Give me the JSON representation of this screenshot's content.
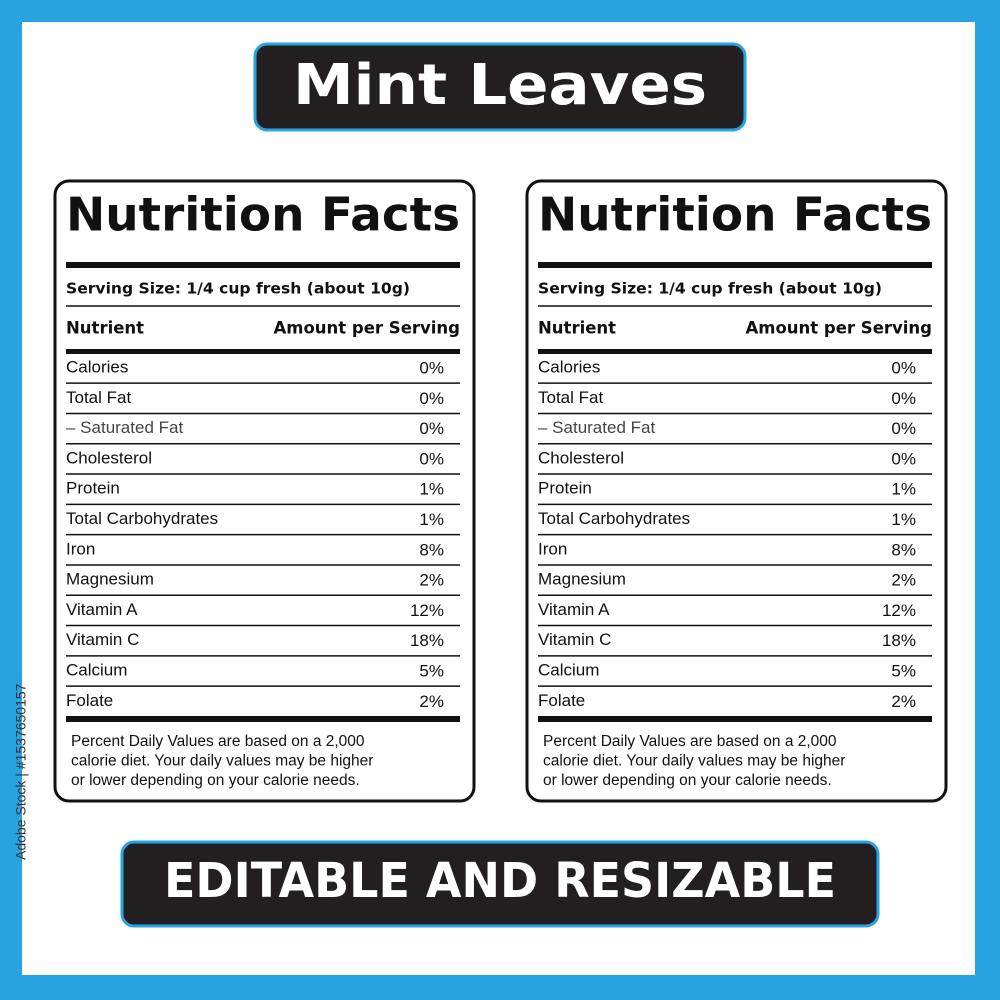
{
  "title": "Mint Leaves",
  "labels": [
    {
      "heading": "Nutrition Facts",
      "serving_size": "Serving Size: 1/4 cup fresh (about 10g)",
      "column_headers": [
        "Nutrient",
        "Amount per Serving"
      ],
      "rows": [
        [
          "Calories",
          "0%"
        ],
        [
          "Total Fat",
          "0%"
        ],
        [
          "– Saturated Fat",
          "0%"
        ],
        [
          "Cholesterol",
          "0%"
        ],
        [
          "Protein",
          "1%"
        ],
        [
          "Total Carbohydrates",
          "1%"
        ],
        [
          "Iron",
          "8%"
        ],
        [
          "Magnesium",
          "2%"
        ],
        [
          "Vitamin A",
          "12%"
        ],
        [
          "Vitamin C",
          "18%"
        ],
        [
          "Calcium",
          "5%"
        ],
        [
          "Folate",
          "2%"
        ]
      ],
      "footnote": [
        "Percent Daily Values are based on a 2,000",
        "calorie diet. Your daily values may be higher",
        "or lower depending on your calorie needs."
      ]
    },
    {
      "heading": "Nutrition Facts",
      "serving_size": "Serving Size: 1/4 cup fresh (about 10g)",
      "column_headers": [
        "Nutrient",
        "Amount per Serving"
      ],
      "rows": [
        [
          "Calories",
          "0%"
        ],
        [
          "Total Fat",
          "0%"
        ],
        [
          "– Saturated Fat",
          "0%"
        ],
        [
          "Cholesterol",
          "0%"
        ],
        [
          "Protein",
          "1%"
        ],
        [
          "Total Carbohydrates",
          "1%"
        ],
        [
          "Iron",
          "8%"
        ],
        [
          "Magnesium",
          "2%"
        ],
        [
          "Vitamin A",
          "12%"
        ],
        [
          "Vitamin C",
          "18%"
        ],
        [
          "Calcium",
          "5%"
        ],
        [
          "Folate",
          "2%"
        ]
      ],
      "footnote": [
        "Percent Daily Values are based on a 2,000",
        "calorie diet. Your daily values may be higher",
        "or lower depending on your calorie needs."
      ]
    }
  ],
  "banner": "EDITABLE AND RESIZABLE",
  "stock_id": "Adobe Stock | #1537650157"
}
